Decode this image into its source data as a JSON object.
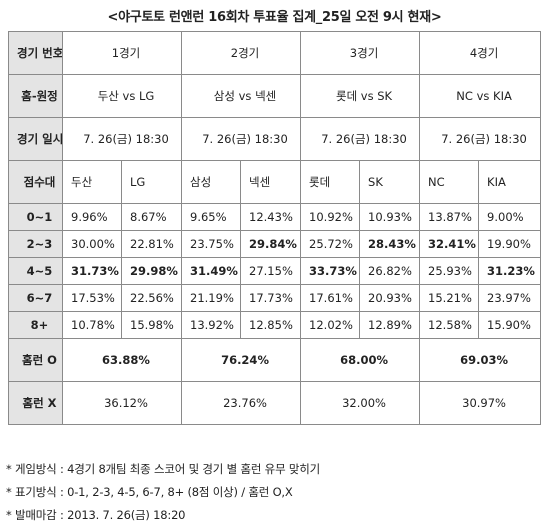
{
  "title": "<야구토토 런앤런 16회차 투표율 집계_25일 오전 9시 현재>",
  "labels": {
    "match_no": "경기 번호",
    "home_away": "홈-원정",
    "date": "경기 일시",
    "score_range": "점수대",
    "homerun_o": "홈런 O",
    "homerun_x": "홈런 X"
  },
  "matches": [
    {
      "no": "1경기",
      "pair": "두산 vs LG",
      "date": "7. 26(금) 18:30",
      "home": "두산",
      "away": "LG"
    },
    {
      "no": "2경기",
      "pair": "삼성 vs 넥센",
      "date": "7. 26(금) 18:30",
      "home": "삼성",
      "away": "넥센"
    },
    {
      "no": "3경기",
      "pair": "롯데 vs SK",
      "date": "7. 26(금) 18:30",
      "home": "롯데",
      "away": "SK"
    },
    {
      "no": "4경기",
      "pair": "NC vs KIA",
      "date": "7. 26(금) 18:30",
      "home": "NC",
      "away": "KIA"
    }
  ],
  "score_rows": [
    {
      "range": "0~1",
      "values": [
        "9.96%",
        "8.67%",
        "9.65%",
        "12.43%",
        "10.92%",
        "10.93%",
        "13.87%",
        "9.00%"
      ],
      "bold": [
        false,
        false,
        false,
        false,
        false,
        false,
        false,
        false
      ]
    },
    {
      "range": "2~3",
      "values": [
        "30.00%",
        "22.81%",
        "23.75%",
        "29.84%",
        "25.72%",
        "28.43%",
        "32.41%",
        "19.90%"
      ],
      "bold": [
        false,
        false,
        false,
        true,
        false,
        true,
        true,
        false
      ]
    },
    {
      "range": "4~5",
      "values": [
        "31.73%",
        "29.98%",
        "31.49%",
        "27.15%",
        "33.73%",
        "26.82%",
        "25.93%",
        "31.23%"
      ],
      "bold": [
        true,
        true,
        true,
        false,
        true,
        false,
        false,
        true
      ]
    },
    {
      "range": "6~7",
      "values": [
        "17.53%",
        "22.56%",
        "21.19%",
        "17.73%",
        "17.61%",
        "20.93%",
        "15.21%",
        "23.97%"
      ],
      "bold": [
        false,
        false,
        false,
        false,
        false,
        false,
        false,
        false
      ]
    },
    {
      "range": "8+",
      "values": [
        "10.78%",
        "15.98%",
        "13.92%",
        "12.85%",
        "12.02%",
        "12.89%",
        "12.58%",
        "15.90%"
      ],
      "bold": [
        false,
        false,
        false,
        false,
        false,
        false,
        false,
        false
      ]
    }
  ],
  "homerun_o": [
    "63.88%",
    "76.24%",
    "68.00%",
    "69.03%"
  ],
  "homerun_x": [
    "36.12%",
    "23.76%",
    "32.00%",
    "30.97%"
  ],
  "notes": [
    "* 게임방식 : 4경기 8개팀 최종 스코어 및 경기 별 홈런 유무 맞히기",
    "* 표기방식 : 0-1, 2-3, 4-5, 6-7, 8+ (8점 이상) / 홈런 O,X",
    "* 발매마감 : 2013. 7. 26(금) 18:20"
  ]
}
